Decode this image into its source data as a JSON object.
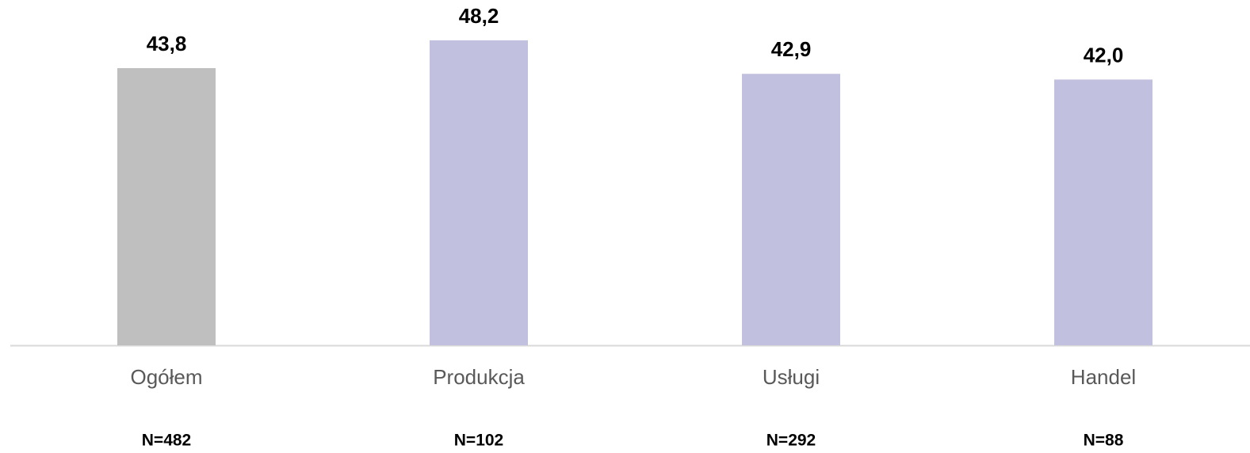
{
  "chart_data": {
    "type": "bar",
    "categories": [
      "Ogółem",
      "Produkcja",
      "Usługi",
      "Handel"
    ],
    "values": [
      43.8,
      48.2,
      42.9,
      42.0
    ],
    "value_labels": [
      "43,8",
      "48,2",
      "42,9",
      "42,0"
    ],
    "colors": [
      "#bfbfbf",
      "#c2c0df",
      "#c2c0df",
      "#c2c0df"
    ],
    "sample_sizes": [
      "N=482",
      "N=102",
      "N=292",
      "N=88"
    ]
  }
}
